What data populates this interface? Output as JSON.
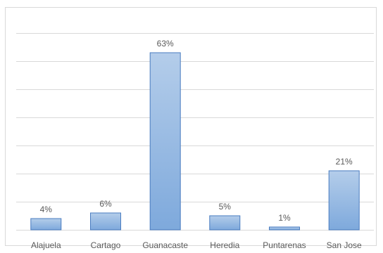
{
  "chart_data": {
    "type": "bar",
    "title": "",
    "xlabel": "",
    "ylabel": "",
    "categories": [
      "Alajuela",
      "Cartago",
      "Guanacaste",
      "Heredia",
      "Puntarenas",
      "San Jose"
    ],
    "values": [
      4,
      6,
      63,
      5,
      1,
      21
    ],
    "data_labels": [
      "4%",
      "6%",
      "63%",
      "5%",
      "1%",
      "21%"
    ],
    "value_unit": "%",
    "ylim": [
      0,
      70
    ],
    "gridline_step": 10,
    "grid": true,
    "legend": "none",
    "colors": {
      "bar_fill_top": "#b4cdea",
      "bar_fill_bottom": "#7ea9dc",
      "bar_stroke": "#4a7cc0",
      "gridline": "#d9d9d9",
      "text": "#595959"
    }
  }
}
